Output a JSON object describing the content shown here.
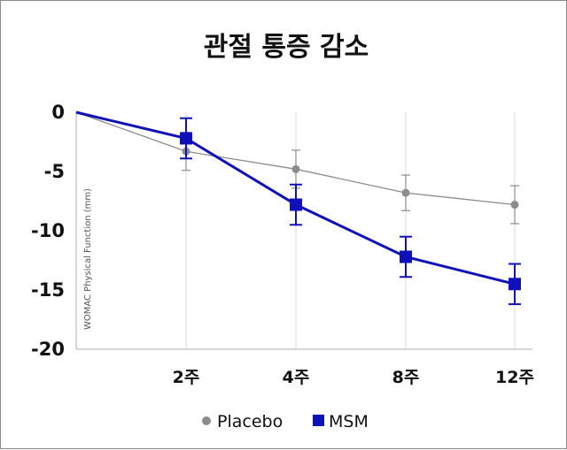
{
  "chart_data": {
    "type": "line",
    "title": "관절 통증 감소",
    "ylabel": "WOMAC Physical Function (mm)",
    "xlabel": "",
    "x": [
      "0",
      "2주",
      "4주",
      "8주",
      "12주"
    ],
    "x_tick_labels": [
      "2주",
      "4주",
      "8주",
      "12주"
    ],
    "y_tick_labels": [
      "0",
      "-5",
      "-10",
      "-15",
      "-20"
    ],
    "ylim": [
      -20,
      0
    ],
    "yticks": [
      0,
      -5,
      -10,
      -15,
      -20
    ],
    "grid": "vertical",
    "legend": "bottom",
    "series": [
      {
        "name": "Placebo",
        "color": "#8c8c8c",
        "marker": "circle",
        "values": [
          0,
          -3.3,
          -4.8,
          -6.8,
          -7.8
        ],
        "errors": [
          0,
          1.6,
          1.6,
          1.5,
          1.6
        ]
      },
      {
        "name": "MSM",
        "color": "#1010b8",
        "marker": "square",
        "values": [
          0,
          -2.2,
          -7.8,
          -12.2,
          -14.5
        ],
        "errors": [
          0,
          1.7,
          1.7,
          1.7,
          1.7
        ]
      }
    ]
  }
}
